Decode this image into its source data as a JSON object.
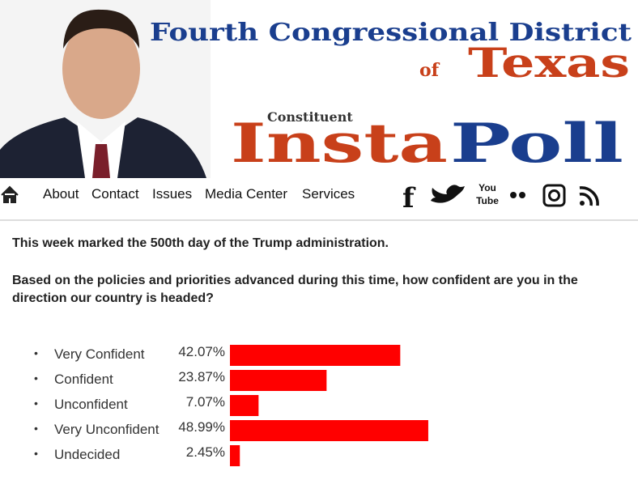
{
  "header": {
    "title_line1": "Fourth Congressional District",
    "title_of": "of",
    "title_state": "Texas",
    "subtitle_small": "Constituent",
    "subtitle_insta": "Insta",
    "subtitle_poll": "Poll"
  },
  "nav": {
    "items": [
      "About",
      "Contact",
      "Issues",
      "Media Center",
      "Services"
    ],
    "youtube": [
      "You",
      "Tube"
    ]
  },
  "intro": "This week marked the 500th day of the Trump administration.",
  "question": "Based on the policies and priorities advanced during this time, how confident are you in the direction our country is headed?",
  "poll": {
    "labels": [
      "Very Confident",
      "Confident",
      "Unconfident",
      "Very Unconfident",
      "Undecided"
    ],
    "values": [
      42.07,
      23.87,
      7.07,
      48.99,
      2.45
    ],
    "value_labels": [
      "42.07%",
      "23.87%",
      "7.07%",
      "48.99%",
      "2.45%"
    ],
    "color": "#ff0000"
  }
}
